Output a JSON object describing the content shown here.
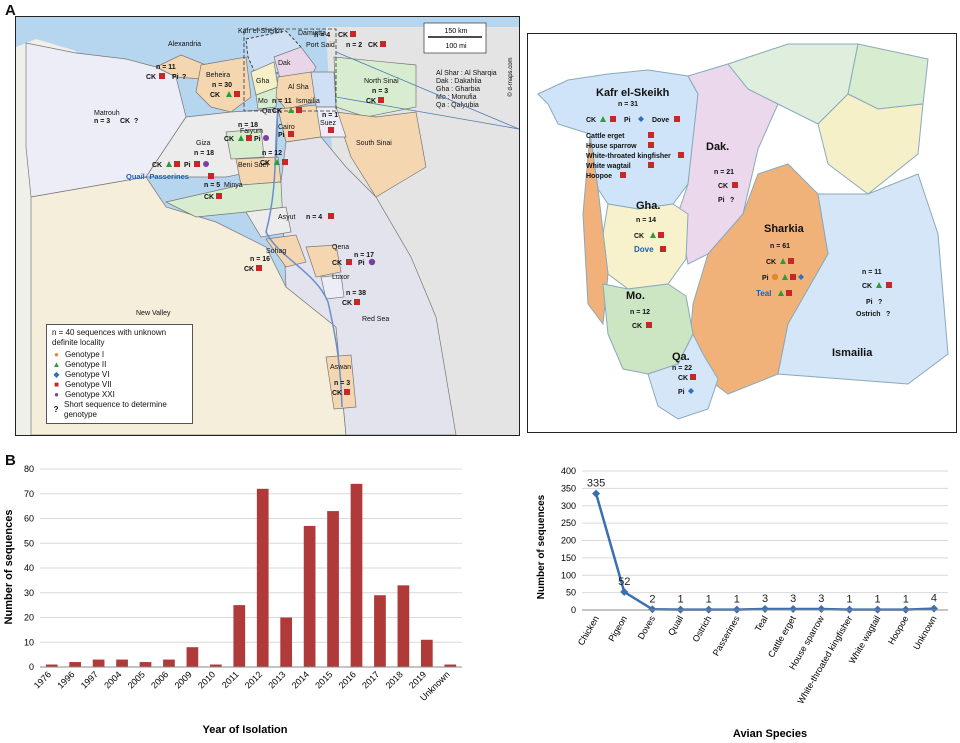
{
  "panel_labels": {
    "a": "A",
    "b": "B"
  },
  "egypt_map": {
    "scale": {
      "km": "150 km",
      "mi": "100 mi",
      "source": "© d-maps.com"
    },
    "abbrev": [
      "Al Shar : Al Sharqia",
      "Dak : Dakahlia",
      "Gha : Gharbia",
      "Mo : Monufia",
      "Qa : Qalyubia"
    ],
    "regions": {
      "alexandria": "Alexandria",
      "kafr": "Kafr el-Sheikh",
      "damietta": "Damietta",
      "portsaid": "Port Said",
      "beheira": "Beheira",
      "dak": "Dak",
      "gha": "Gha",
      "mo": "Mo",
      "qa": "Qa",
      "alsha": "Al Sha",
      "ismailia": "Ismailia",
      "northsinai": "North Sinai",
      "southsinai": "South Sinai",
      "matrouh": "Matrouh",
      "suez": "Suez",
      "cairo": "Cairo",
      "faiyum": "Faiyum",
      "giza": "Giza",
      "benisuef": "Beni Suef",
      "minya": "Minya",
      "asyut": "Asyut",
      "sohag": "Sohag",
      "qena": "Qena",
      "luxor": "Luxor",
      "redsea": "Red Sea",
      "newvalley": "New Valley",
      "aswan": "Aswan"
    },
    "counts": {
      "alexandria": "n = 11",
      "damietta": "n = 4",
      "portsaid": "n = 2",
      "beheira": "n = 30",
      "northsinai": "n = 3",
      "matrouh": "n = 3",
      "cairo": "n = 11",
      "suez": "n = 1",
      "faiyum": "n = 18",
      "giza": "n = 18",
      "benisuef": "n = 12",
      "minya": "n = 5",
      "asyut": "n = 4",
      "sohag": "n = 16",
      "qena": "n = 17",
      "luxor": "n = 38",
      "aswan": "n = 3"
    },
    "abbr": {
      "ck": "CK",
      "pi": "Pi",
      "q": "?",
      "quail": "Quail- Passerines"
    },
    "legend": {
      "title": "n = 40 sequences with unknown definite locality",
      "items": [
        "Genotype I",
        "Genotype II",
        "Genotype VI",
        "Genotype VII",
        "Genotype XXI",
        "Short sequence to determine genotype"
      ],
      "q": "?"
    },
    "colors": {
      "geno1": "#e08a2c",
      "geno2": "#2e9a3a",
      "geno6": "#2c6fc4",
      "geno7": "#c62828",
      "geno21": "#7b3fa0"
    }
  },
  "delta_map": {
    "govs": {
      "kafr": "Kafr el-Skeikh",
      "dak": "Dak.",
      "gha": "Gha.",
      "sharkia": "Sharkia",
      "mo": "Mo.",
      "qa": "Qa.",
      "ismailia": "Ismailia"
    },
    "counts": {
      "kafr": "n = 31",
      "dak": "n = 21",
      "gha": "n = 14",
      "sharkia": "n = 61",
      "mo": "n = 12",
      "qa": "n = 22",
      "ismailia": "n = 11"
    },
    "kafr_species": [
      "Cattle erget",
      "House sparrow",
      "White-throated kingfisher",
      "White wagtail",
      "Hoopoe"
    ],
    "labels": {
      "ck": "CK",
      "pi": "Pi",
      "dove": "Dove",
      "teal": "Teal",
      "ostrich": "Ostrich",
      "q": "?"
    }
  },
  "chart_data": [
    {
      "type": "bar",
      "categories": [
        "1976",
        "1996",
        "1997",
        "2004",
        "2005",
        "2006",
        "2009",
        "2010",
        "2011",
        "2012",
        "2013",
        "2014",
        "2015",
        "2016",
        "2017",
        "2018",
        "2019",
        "Unknown"
      ],
      "values": [
        1,
        2,
        3,
        3,
        2,
        3,
        8,
        1,
        25,
        72,
        20,
        57,
        63,
        74,
        29,
        33,
        11,
        1
      ],
      "title": "",
      "xlabel": "Year of Isolation",
      "ylabel": "Number of sequences",
      "ylim": [
        0,
        80
      ],
      "yticks": [
        0,
        10,
        20,
        30,
        40,
        50,
        60,
        70,
        80
      ],
      "grid": true,
      "color": "#b03a3a"
    },
    {
      "type": "line",
      "categories": [
        "Chicken",
        "Pigeon",
        "Doves",
        "Quail",
        "Ostrich",
        "Passerines",
        "Teal",
        "Cattle erget",
        "House sparrow",
        "White-throated kingfisher",
        "White wagtail",
        "Hoopoe",
        "Unknown"
      ],
      "values": [
        335,
        52,
        2,
        1,
        1,
        1,
        3,
        3,
        3,
        1,
        1,
        1,
        4
      ],
      "title": "",
      "xlabel": "Avian Species",
      "ylabel": "Number of sequences",
      "ylim": [
        0,
        400
      ],
      "yticks": [
        0,
        50,
        100,
        150,
        200,
        250,
        300,
        350,
        400
      ],
      "grid": true,
      "data_labels": true,
      "color": "#3a6fb0"
    }
  ]
}
